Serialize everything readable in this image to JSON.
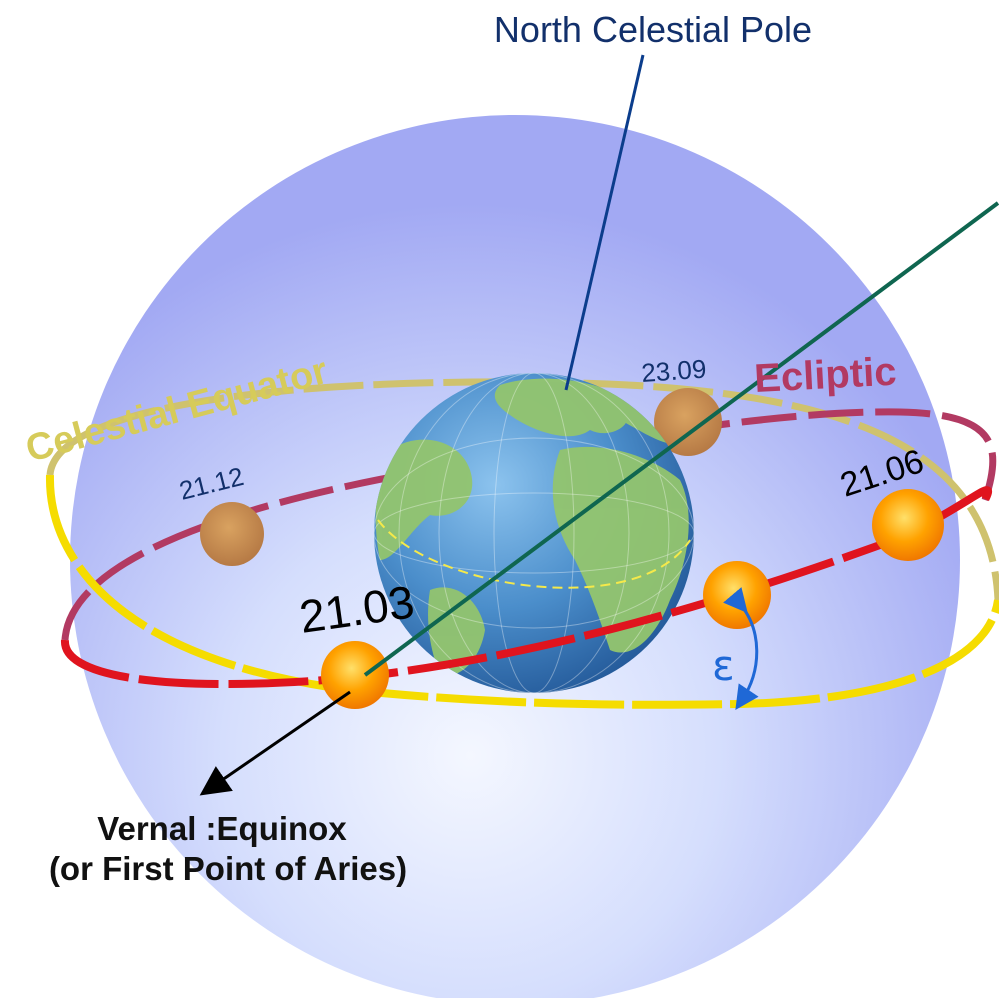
{
  "labels": {
    "pole": "North Celestial Pole",
    "equator": "Celestial Equator",
    "ecliptic": "Ecliptic",
    "vernal_line1": "Vernal :Equinox",
    "vernal_line2": "(or First Point of Aries)",
    "obliquity_symbol": "ε"
  },
  "dates": {
    "march": "21.03",
    "june": "21.06",
    "september": "23.09",
    "december": "21.12"
  },
  "colors": {
    "sphere_center": "#e6eeff",
    "sphere_edge": "#a9b0f4",
    "equator": "#f5dc00",
    "ecliptic": "#e0141e",
    "pole_line": "#0b3d8c",
    "axis_line": "#0f6650",
    "sun": "#ff9a00",
    "ocean": "#3f86c4",
    "land": "#8fc46a",
    "obliquity": "#1f68d6"
  }
}
